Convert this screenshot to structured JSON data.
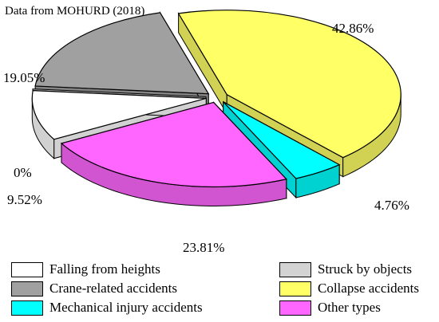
{
  "chart_data": {
    "type": "pie",
    "style": "3d-exploded",
    "title": "Data from MOHURD (2018)",
    "legend_position": "bottom",
    "slices": [
      {
        "name": "Falling from heights",
        "value": 9.52,
        "label": "9.52%",
        "color": "#ffffff"
      },
      {
        "name": "Struck by objects",
        "value": 0,
        "label": "0%",
        "color": "#d3d3d3"
      },
      {
        "name": "Crane-related accidents",
        "value": 19.05,
        "label": "19.05%",
        "color": "#a0a0a0"
      },
      {
        "name": "Collapse accidents",
        "value": 42.86,
        "label": "42.86%",
        "color": "#ffff66"
      },
      {
        "name": "Mechanical injury accidents",
        "value": 4.76,
        "label": "4.76%",
        "color": "#00ffff"
      },
      {
        "name": "Other types",
        "value": 23.81,
        "label": "23.81%",
        "color": "#ff66ff"
      }
    ]
  }
}
